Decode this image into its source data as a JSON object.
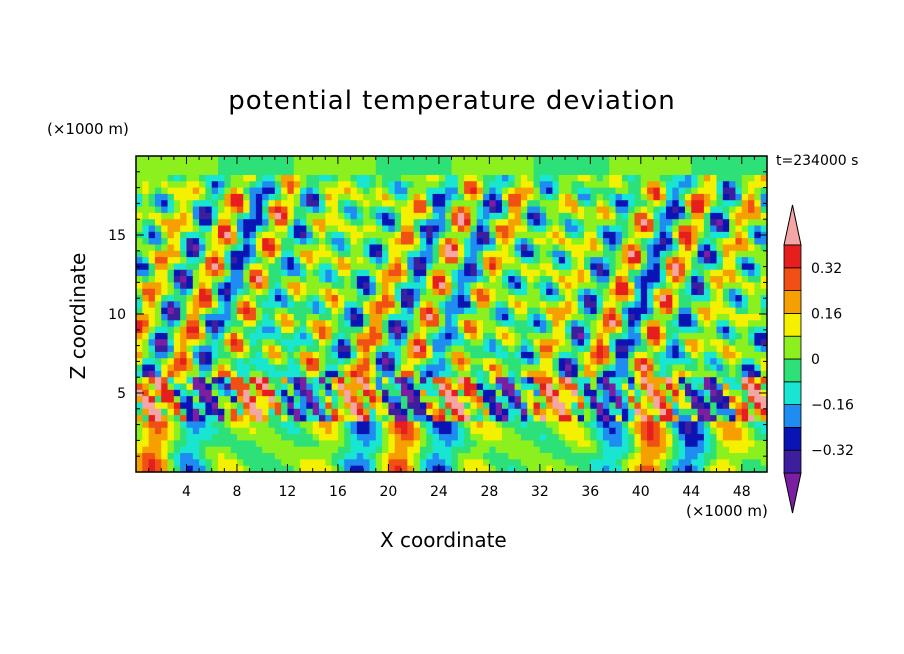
{
  "chart_data": {
    "type": "heatmap",
    "title": "potential temperature deviation",
    "xlabel": "X coordinate",
    "ylabel": "Z coordinate",
    "x_unit": "(×1000 m)",
    "z_unit": "(×1000 m)",
    "time_label": "t=234000 s",
    "xlim": [
      0,
      50
    ],
    "ylim": [
      0,
      20
    ],
    "x_ticks": [
      4,
      8,
      12,
      16,
      20,
      24,
      28,
      32,
      36,
      40,
      44,
      48
    ],
    "z_ticks": [
      5,
      10,
      15
    ],
    "colorbar": {
      "levels": [
        -0.4,
        -0.32,
        -0.24,
        -0.16,
        -0.08,
        0,
        0.08,
        0.16,
        0.24,
        0.32,
        0.4
      ],
      "labeled_levels": [
        "0.32",
        "0.16",
        "0",
        "−0.16",
        "−0.32"
      ],
      "colors": [
        "#7a1fa2",
        "#3c1e9e",
        "#0a14b4",
        "#1e8cf0",
        "#19e6d2",
        "#2de178",
        "#8cf01e",
        "#f5f000",
        "#f5a000",
        "#f05014",
        "#e61e1e",
        "#f4a6a6"
      ]
    }
  }
}
